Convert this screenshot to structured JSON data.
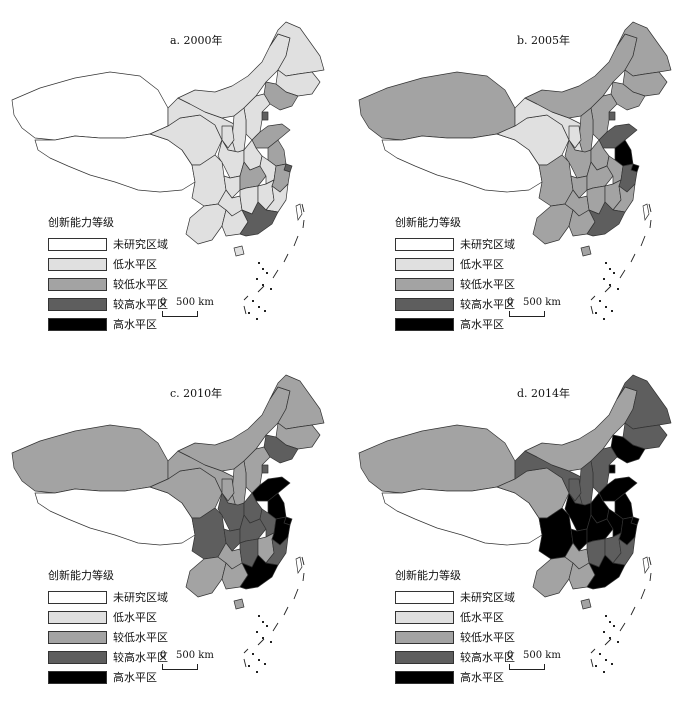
{
  "colors": {
    "level_0": "#ffffff",
    "level_1": "#e0e0e0",
    "level_2": "#a3a3a3",
    "level_3": "#5e5e5e",
    "level_4": "#000000",
    "outline": "#333333"
  },
  "legend": {
    "title": "创新能力等级",
    "items": [
      {
        "label": "未研究区域",
        "level": 0
      },
      {
        "label": "低水平区",
        "level": 1
      },
      {
        "label": "较低水平区",
        "level": 2
      },
      {
        "label": "较高水平区",
        "level": 3
      },
      {
        "label": "高水平区",
        "level": 4
      }
    ]
  },
  "scale": {
    "zero": "0",
    "value": "500 km"
  },
  "panels": [
    {
      "title": "a. 2000年",
      "levels": {
        "xinjiang": 0,
        "tibet": 0,
        "qinghai": 1,
        "gansu": 1,
        "neimenggu": 1,
        "heilongjiang": 1,
        "jilin": 1,
        "liaoning": 2,
        "beijing": 4,
        "tianjin": 3,
        "hebei": 1,
        "shanxi": 1,
        "shandong": 2,
        "shaanxi": 1,
        "ningxia": 1,
        "henan": 1,
        "jiangsu": 2,
        "shanghai": 3,
        "sichuan": 1,
        "chongqing": 1,
        "hubei": 2,
        "anhui": 1,
        "zhejiang": 2,
        "yunnan": 1,
        "guizhou": 1,
        "hunan": 1,
        "jiangxi": 1,
        "fujian": 1,
        "guangxi": 1,
        "guangdong": 3,
        "hainan": 1
      }
    },
    {
      "title": "b. 2005年",
      "levels": {
        "xinjiang": 2,
        "tibet": 0,
        "qinghai": 1,
        "gansu": 1,
        "neimenggu": 2,
        "heilongjiang": 2,
        "jilin": 2,
        "liaoning": 2,
        "beijing": 4,
        "tianjin": 3,
        "hebei": 2,
        "shanxi": 2,
        "shandong": 3,
        "shaanxi": 2,
        "ningxia": 1,
        "henan": 2,
        "jiangsu": 4,
        "shanghai": 4,
        "sichuan": 2,
        "chongqing": 2,
        "hubei": 2,
        "anhui": 2,
        "zhejiang": 3,
        "yunnan": 2,
        "guizhou": 2,
        "hunan": 2,
        "jiangxi": 2,
        "fujian": 2,
        "guangxi": 2,
        "guangdong": 3,
        "hainan": 2
      }
    },
    {
      "title": "c. 2010年",
      "levels": {
        "xinjiang": 2,
        "tibet": 0,
        "qinghai": 2,
        "gansu": 2,
        "neimenggu": 2,
        "heilongjiang": 2,
        "jilin": 2,
        "liaoning": 3,
        "beijing": 4,
        "tianjin": 3,
        "hebei": 2,
        "shanxi": 2,
        "shandong": 4,
        "shaanxi": 3,
        "ningxia": 2,
        "henan": 3,
        "jiangsu": 4,
        "shanghai": 4,
        "sichuan": 3,
        "chongqing": 3,
        "hubei": 3,
        "anhui": 3,
        "zhejiang": 4,
        "yunnan": 2,
        "guizhou": 2,
        "hunan": 3,
        "jiangxi": 2,
        "fujian": 3,
        "guangxi": 2,
        "guangdong": 4,
        "hainan": 2
      }
    },
    {
      "title": "d. 2014年",
      "levels": {
        "xinjiang": 2,
        "tibet": 0,
        "qinghai": 2,
        "gansu": 3,
        "neimenggu": 2,
        "heilongjiang": 3,
        "jilin": 3,
        "liaoning": 4,
        "beijing": 4,
        "tianjin": 4,
        "hebei": 3,
        "shanxi": 3,
        "shandong": 4,
        "shaanxi": 4,
        "ningxia": 3,
        "henan": 4,
        "jiangsu": 4,
        "shanghai": 4,
        "sichuan": 4,
        "chongqing": 4,
        "hubei": 4,
        "anhui": 4,
        "zhejiang": 4,
        "yunnan": 2,
        "guizhou": 2,
        "hunan": 3,
        "jiangxi": 3,
        "fujian": 3,
        "guangxi": 2,
        "guangdong": 4,
        "hainan": 2
      }
    }
  ]
}
